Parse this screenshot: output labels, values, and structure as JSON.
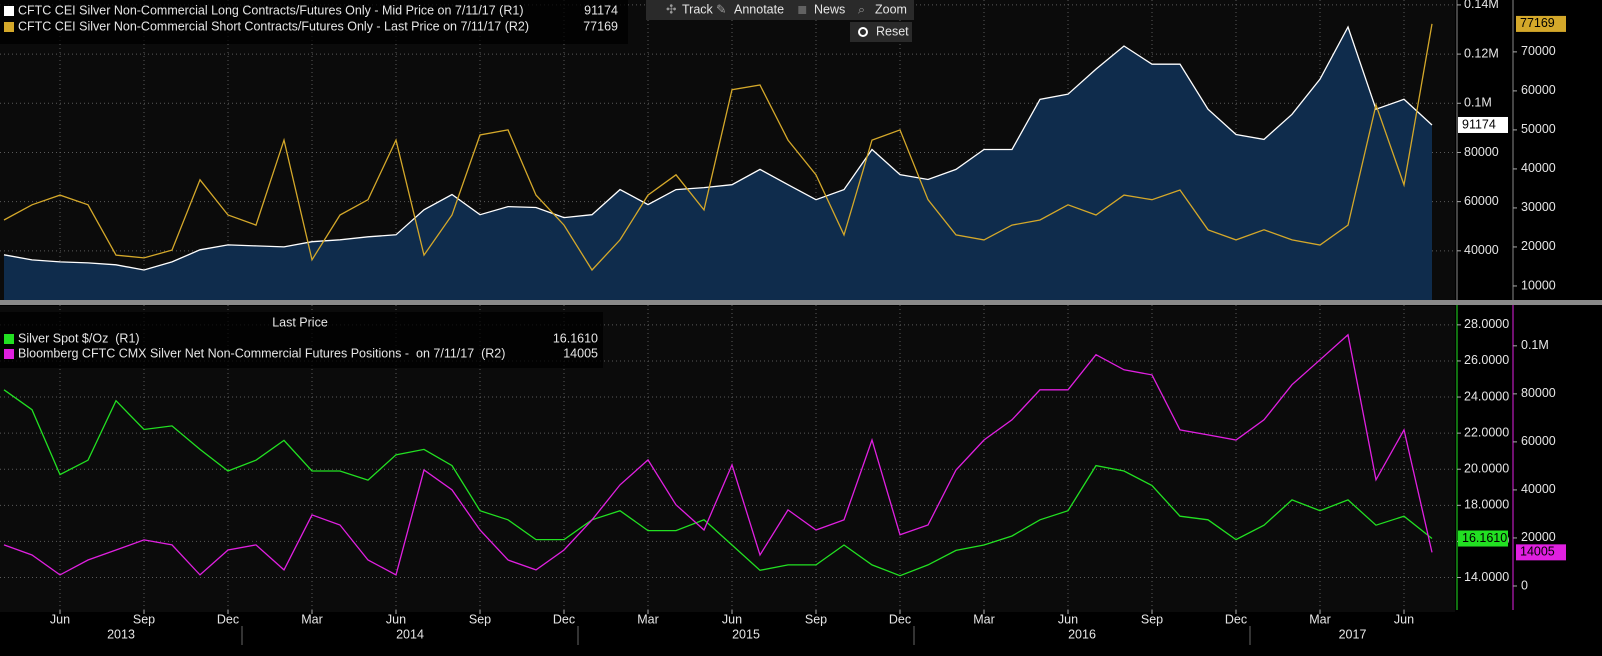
{
  "toolbar": [
    "Track",
    "Annotate",
    "News",
    "Zoom"
  ],
  "reset": "Reset",
  "chart_data": [
    {
      "type": "line",
      "x": [
        "2013-04",
        "2013-05",
        "2013-06",
        "2013-07",
        "2013-08",
        "2013-09",
        "2013-10",
        "2013-11",
        "2013-12",
        "2014-01",
        "2014-02",
        "2014-03",
        "2014-04",
        "2014-05",
        "2014-06",
        "2014-07",
        "2014-08",
        "2014-09",
        "2014-10",
        "2014-11",
        "2014-12",
        "2015-01",
        "2015-02",
        "2015-03",
        "2015-04",
        "2015-05",
        "2015-06",
        "2015-07",
        "2015-08",
        "2015-09",
        "2015-10",
        "2015-11",
        "2015-12",
        "2016-01",
        "2016-02",
        "2016-03",
        "2016-04",
        "2016-05",
        "2016-06",
        "2016-07",
        "2016-08",
        "2016-09",
        "2016-10",
        "2016-11",
        "2016-12",
        "2017-01",
        "2017-02",
        "2017-03",
        "2017-04",
        "2017-05",
        "2017-06",
        "2017-07"
      ],
      "xlim": [
        "2013-04",
        "2017-07"
      ],
      "ylim": [
        20000,
        142000
      ],
      "yticks": [
        {
          "value": 140000,
          "label": "0.14M"
        },
        {
          "value": 120000,
          "label": "0.12M"
        },
        {
          "value": 100000,
          "label": "0.1M"
        },
        80000,
        60000,
        40000
      ],
      "y2lim": [
        6400,
        83300
      ],
      "y2ticks": [
        70000,
        60000,
        50000,
        40000,
        30000,
        20000,
        10000
      ],
      "grid": true,
      "series": [
        {
          "name": "CFTC CEI Silver Non-Commercial Long Contracts/Futures Only - Mid Price on 7/11/17 (R1)",
          "color": "#ffffff",
          "area": true,
          "values": [
            38400,
            36300,
            35500,
            35100,
            34300,
            32200,
            35500,
            40400,
            42400,
            42000,
            41600,
            43700,
            44500,
            45700,
            46500,
            56700,
            62900,
            54700,
            58000,
            57600,
            53500,
            54700,
            64900,
            58800,
            64900,
            65700,
            66900,
            73100,
            66900,
            60800,
            64900,
            81200,
            71000,
            69000,
            73100,
            81200,
            81200,
            101600,
            103700,
            113900,
            123300,
            115900,
            115900,
            97600,
            87300,
            85300,
            95500,
            109800,
            131000,
            97600,
            101600,
            91174
          ]
        },
        {
          "name": "CFTC CEI Silver Non-Commercial Short Contracts/Futures Only - Last Price on 7/11/17 (R2)",
          "color": "#d4a82a",
          "axis": "y2",
          "values": [
            26900,
            30800,
            33300,
            30800,
            17900,
            17200,
            19200,
            37200,
            28200,
            25600,
            47400,
            16700,
            28200,
            32100,
            47400,
            17900,
            28200,
            48700,
            50000,
            33300,
            25600,
            14100,
            21800,
            33300,
            38500,
            29500,
            60300,
            61500,
            47400,
            38500,
            23100,
            47400,
            50000,
            32100,
            23100,
            21800,
            25600,
            26900,
            30800,
            28200,
            33300,
            32100,
            34600,
            24400,
            21800,
            24400,
            21800,
            20500,
            25600,
            56400,
            35900,
            77169
          ]
        }
      ]
    },
    {
      "type": "line",
      "legend_title": "Last Price",
      "x": [
        "2013-04",
        "2013-05",
        "2013-06",
        "2013-07",
        "2013-08",
        "2013-09",
        "2013-10",
        "2013-11",
        "2013-12",
        "2014-01",
        "2014-02",
        "2014-03",
        "2014-04",
        "2014-05",
        "2014-06",
        "2014-07",
        "2014-08",
        "2014-09",
        "2014-10",
        "2014-11",
        "2014-12",
        "2015-01",
        "2015-02",
        "2015-03",
        "2015-04",
        "2015-05",
        "2015-06",
        "2015-07",
        "2015-08",
        "2015-09",
        "2015-10",
        "2015-11",
        "2015-12",
        "2016-01",
        "2016-02",
        "2016-03",
        "2016-04",
        "2016-05",
        "2016-06",
        "2016-07",
        "2016-08",
        "2016-09",
        "2016-10",
        "2016-11",
        "2016-12",
        "2017-01",
        "2017-02",
        "2017-03",
        "2017-04",
        "2017-05",
        "2017-06",
        "2017-07"
      ],
      "xlim": [
        "2013-04",
        "2017-07"
      ],
      "xticks": [
        {
          "value": "2013-06",
          "label": "Jun"
        },
        {
          "value": "2013-09",
          "label": "Sep"
        },
        {
          "value": "2013-12",
          "label": "Dec"
        },
        {
          "value": "2014-03",
          "label": "Mar"
        },
        {
          "value": "2014-06",
          "label": "Jun"
        },
        {
          "value": "2014-09",
          "label": "Sep"
        },
        {
          "value": "2014-12",
          "label": "Dec"
        },
        {
          "value": "2015-03",
          "label": "Mar"
        },
        {
          "value": "2015-06",
          "label": "Jun"
        },
        {
          "value": "2015-09",
          "label": "Sep"
        },
        {
          "value": "2015-12",
          "label": "Dec"
        },
        {
          "value": "2016-03",
          "label": "Mar"
        },
        {
          "value": "2016-06",
          "label": "Jun"
        },
        {
          "value": "2016-09",
          "label": "Sep"
        },
        {
          "value": "2016-12",
          "label": "Dec"
        },
        {
          "value": "2017-03",
          "label": "Mar"
        },
        {
          "value": "2017-06",
          "label": "Jun"
        }
      ],
      "years": [
        "2013",
        "2014",
        "2015",
        "2016",
        "2017"
      ],
      "ylim": [
        12.2,
        29.1
      ],
      "yticks": [
        {
          "value": 28,
          "label": "28.0000"
        },
        {
          "value": 26,
          "label": "26.0000"
        },
        {
          "value": 24,
          "label": "24.0000"
        },
        {
          "value": 22,
          "label": "22.0000"
        },
        {
          "value": 20,
          "label": "20.0000"
        },
        {
          "value": 18,
          "label": "18.0000"
        },
        {
          "value": 16,
          "label": "16.0000"
        },
        {
          "value": 14,
          "label": "14.0000"
        }
      ],
      "y2lim": [
        -10000,
        117000
      ],
      "y2ticks": [
        {
          "value": 100000,
          "label": "0.1M"
        },
        80000,
        60000,
        40000,
        20000,
        0
      ],
      "grid": true,
      "series": [
        {
          "name": "Silver Spot $/Oz  (R1)",
          "color": "#22e022",
          "values": [
            24.4,
            23.3,
            19.7,
            20.5,
            23.8,
            22.2,
            22.4,
            21.1,
            19.9,
            20.5,
            21.6,
            19.9,
            19.9,
            19.4,
            20.8,
            21.1,
            20.2,
            17.7,
            17.2,
            16.1,
            16.1,
            17.2,
            17.7,
            16.6,
            16.6,
            17.2,
            15.8,
            14.4,
            14.7,
            14.7,
            15.8,
            14.7,
            14.1,
            14.7,
            15.5,
            15.8,
            16.3,
            17.2,
            17.7,
            20.2,
            19.9,
            19.1,
            17.4,
            17.2,
            16.1,
            16.9,
            18.3,
            17.7,
            18.3,
            16.9,
            17.4,
            16.161
          ],
          "value_labels": [
            null,
            null,
            null,
            null,
            null,
            null,
            null,
            null,
            null,
            null,
            null,
            null,
            null,
            null,
            null,
            null,
            null,
            null,
            null,
            null,
            null,
            null,
            null,
            null,
            null,
            null,
            null,
            null,
            null,
            null,
            null,
            null,
            null,
            null,
            null,
            null,
            null,
            null,
            null,
            null,
            null,
            null,
            null,
            null,
            null,
            null,
            null,
            null,
            null,
            null,
            null,
            "16.1610"
          ]
        },
        {
          "name": "Bloomberg CFTC CMX Silver Net Non-Commercial Futures Positions -  on 7/11/17  (R2)",
          "color": "#e020e0",
          "axis": "y2",
          "values": [
            17100,
            12900,
            4600,
            10800,
            15000,
            19200,
            17100,
            4600,
            15000,
            17100,
            6700,
            29600,
            25400,
            10800,
            4600,
            48300,
            40000,
            23300,
            10800,
            6700,
            15000,
            27500,
            42100,
            52500,
            33800,
            23300,
            50400,
            12900,
            31700,
            23300,
            27500,
            60800,
            21300,
            25400,
            48300,
            60800,
            69200,
            81700,
            81700,
            96300,
            90000,
            87900,
            65000,
            62900,
            60800,
            69200,
            83800,
            94200,
            104600,
            44200,
            65000,
            14005
          ]
        }
      ]
    }
  ]
}
